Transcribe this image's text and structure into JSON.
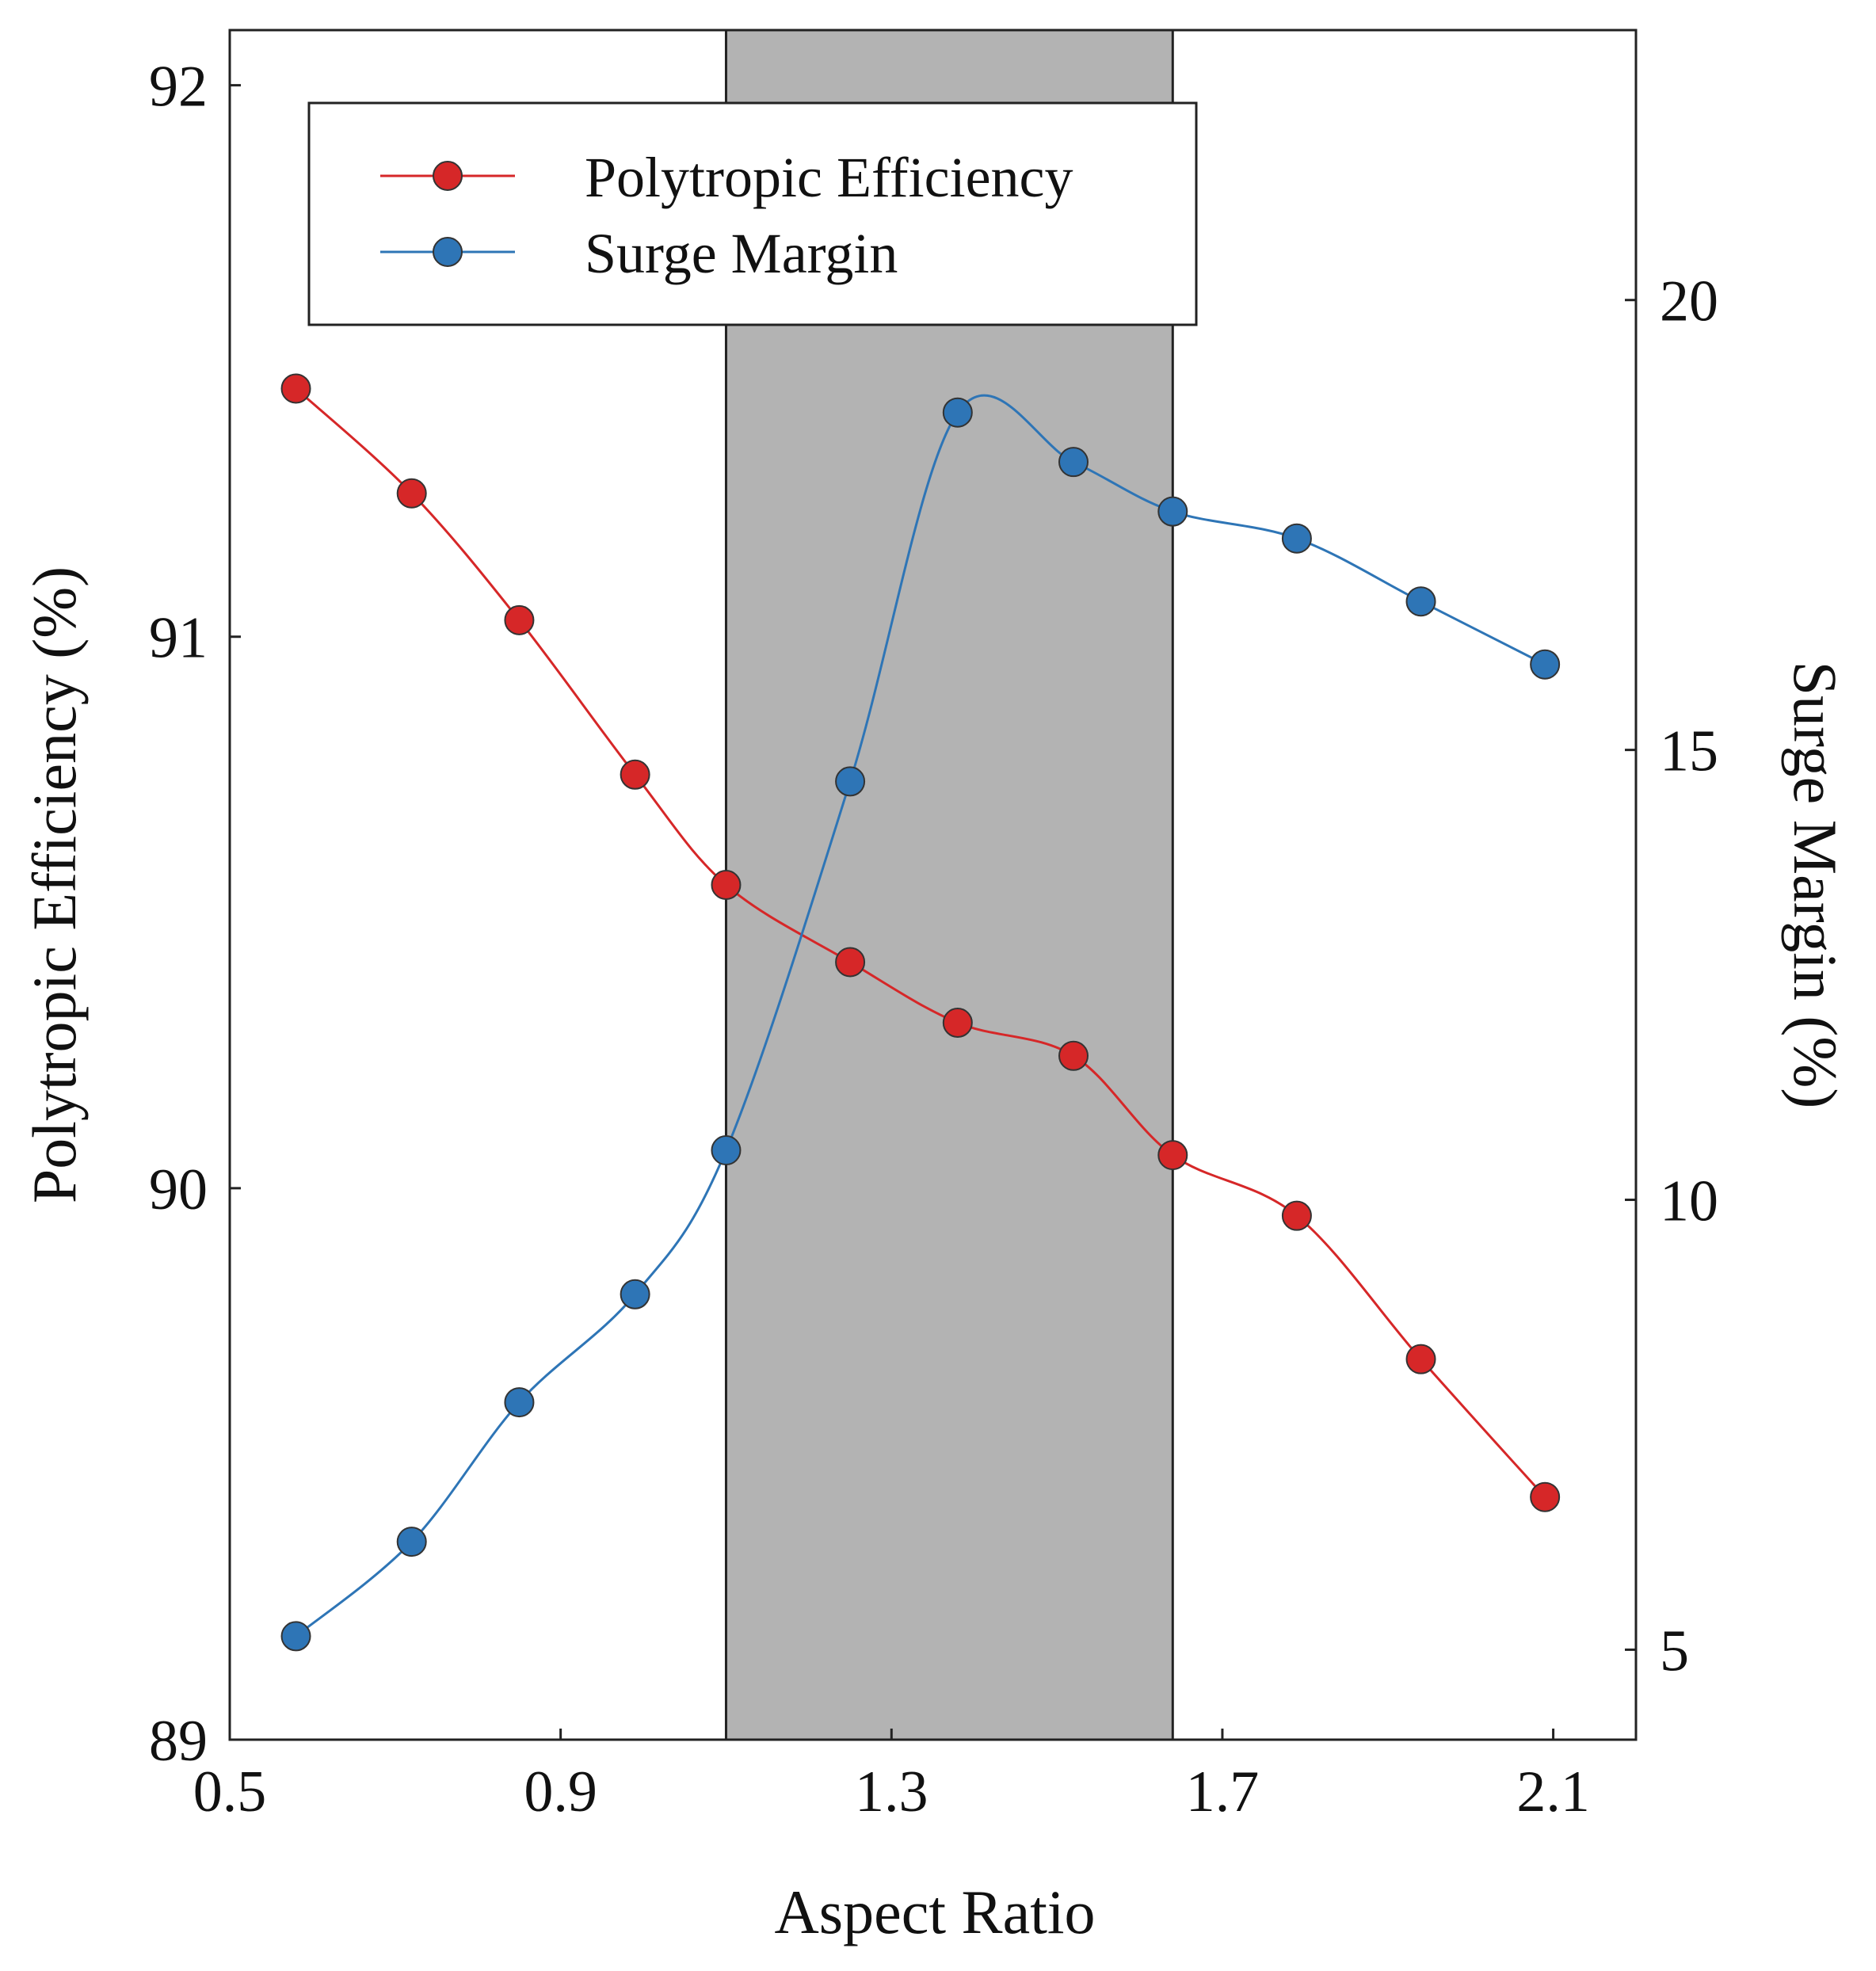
{
  "chart_data": {
    "type": "line",
    "xlabel": "Aspect Ratio",
    "ylabel": "Polytropic Efficiency (%)",
    "y2label": "Surge Margin (%)",
    "xlim": [
      0.5,
      2.2
    ],
    "ylim": [
      89,
      92.1
    ],
    "y2lim": [
      4,
      23
    ],
    "x_ticks": [
      "0.5",
      "0.9",
      "1.3",
      "1.7",
      "2.1"
    ],
    "y_ticks": [
      "89",
      "90",
      "91",
      "92"
    ],
    "y2_ticks": [
      "5",
      "10",
      "15",
      "20"
    ],
    "grid": false,
    "legend_position": "top-left",
    "shaded_x_range": [
      1.1,
      1.64
    ],
    "shade_color": "#b3b3b3",
    "series": [
      {
        "name": "Polytropic Efficiency",
        "axis": "left",
        "color": "#d62728",
        "x": [
          0.58,
          0.72,
          0.85,
          0.99,
          1.1,
          1.25,
          1.38,
          1.52,
          1.64,
          1.79,
          1.94,
          2.09
        ],
        "values": [
          91.45,
          91.26,
          91.03,
          90.75,
          90.55,
          90.41,
          90.3,
          90.24,
          90.06,
          89.95,
          89.69,
          89.44
        ]
      },
      {
        "name": "Surge Margin",
        "axis": "right",
        "color": "#2e75b6",
        "x": [
          0.58,
          0.72,
          0.85,
          0.99,
          1.1,
          1.25,
          1.38,
          1.52,
          1.64,
          1.79,
          1.94,
          2.09
        ],
        "values": [
          5.15,
          6.2,
          7.75,
          8.95,
          10.55,
          14.65,
          18.75,
          18.2,
          17.65,
          17.35,
          16.65,
          15.95
        ]
      }
    ]
  }
}
